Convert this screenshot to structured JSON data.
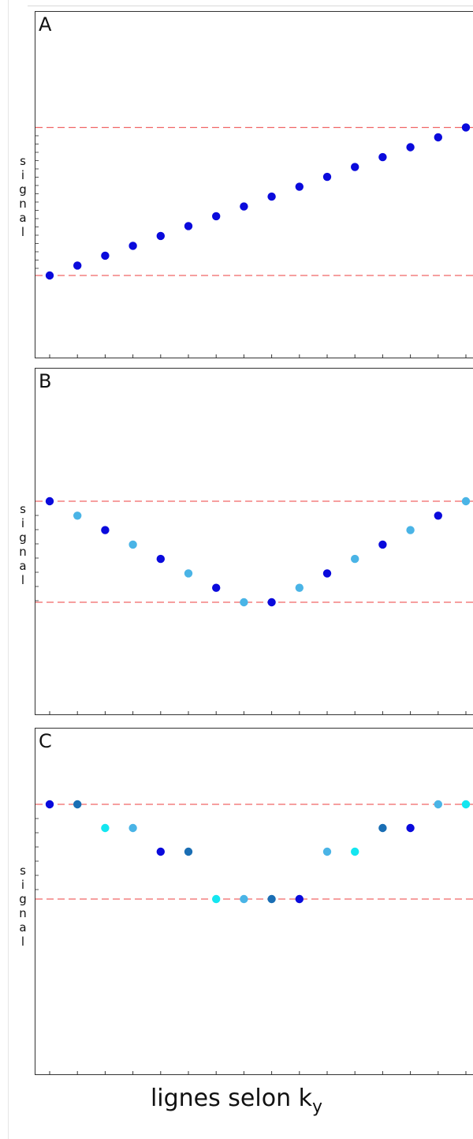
{
  "chart_data": [
    {
      "type": "scatter",
      "panel_label": "A",
      "ylabel": "signal",
      "x": [
        1,
        2,
        3,
        4,
        5,
        6,
        7,
        8,
        9,
        10,
        11,
        12,
        13,
        14,
        15,
        16
      ],
      "y": [
        0,
        0.077,
        0.154,
        0.231,
        0.308,
        0.385,
        0.462,
        0.538,
        0.615,
        0.692,
        0.769,
        0.846,
        0.923,
        1.0,
        1.077,
        1.154
      ],
      "point_colors": [
        "#0a0adc",
        "#0a0adc",
        "#0a0adc",
        "#0a0adc",
        "#0a0adc",
        "#0a0adc",
        "#0a0adc",
        "#0a0adc",
        "#0a0adc",
        "#0a0adc",
        "#0a0adc",
        "#0a0adc",
        "#0a0adc",
        "#0a0adc",
        "#0a0adc",
        "#0a0adc"
      ],
      "reference_lines": [
        0,
        1.154
      ],
      "reference_color": "#f06666",
      "grid": false
    },
    {
      "type": "scatter",
      "panel_label": "B",
      "ylabel": "signal",
      "x": [
        1,
        2,
        3,
        4,
        5,
        6,
        7,
        8,
        9,
        10,
        11,
        12,
        13,
        14,
        15,
        16
      ],
      "y": [
        1.0,
        0.857,
        0.714,
        0.571,
        0.429,
        0.286,
        0.143,
        0,
        0,
        0.143,
        0.286,
        0.429,
        0.571,
        0.714,
        0.857,
        1.0
      ],
      "point_colors": [
        "#0a0adc",
        "#4ab4e6",
        "#0a0adc",
        "#4ab4e6",
        "#0a0adc",
        "#4ab4e6",
        "#0a0adc",
        "#4ab4e6",
        "#0a0adc",
        "#4ab4e6",
        "#0a0adc",
        "#4ab4e6",
        "#0a0adc",
        "#4ab4e6",
        "#0a0adc",
        "#4ab4e6"
      ],
      "reference_lines": [
        0,
        1.0
      ],
      "reference_color": "#f06666",
      "grid": false
    },
    {
      "type": "scatter",
      "panel_label": "C",
      "ylabel": "signal",
      "x": [
        1,
        2,
        3,
        4,
        5,
        6,
        7,
        8,
        9,
        10,
        11,
        12,
        13,
        14,
        15,
        16
      ],
      "y": [
        1.0,
        1.0,
        0.75,
        0.75,
        0.5,
        0.5,
        0,
        0,
        0,
        0,
        0.5,
        0.5,
        0.75,
        0.75,
        1.0,
        1.0
      ],
      "point_colors": [
        "#0a0adc",
        "#1a6eb4",
        "#14e6f0",
        "#4ab4e6",
        "#0a0adc",
        "#1a6eb4",
        "#14e6f0",
        "#4ab4e6",
        "#1a6eb4",
        "#0a0adc",
        "#4ab4e6",
        "#14e6f0",
        "#1a6eb4",
        "#0a0adc",
        "#4ab4e6",
        "#14e6f0"
      ],
      "reference_lines": [
        0,
        1.0
      ],
      "reference_color": "#f06666",
      "grid": false
    }
  ],
  "xlabel": {
    "main": "lignes selon k",
    "sub": "y"
  }
}
